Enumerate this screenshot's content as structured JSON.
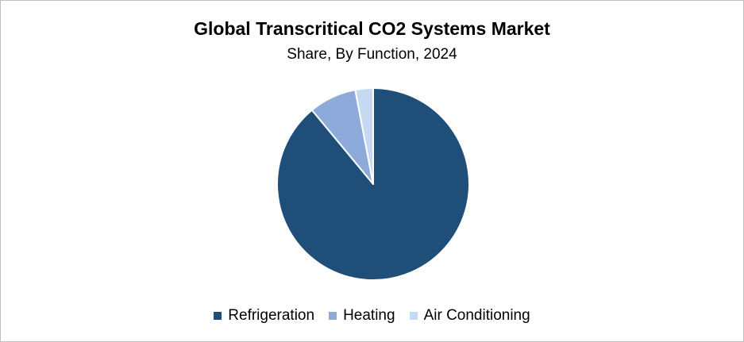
{
  "chart_data": {
    "type": "pie",
    "title": "Global Transcritical CO2 Systems Market",
    "subtitle": "Share, By Function, 2024",
    "categories": [
      "Refrigeration",
      "Heating",
      "Air Conditioning"
    ],
    "values": [
      89,
      8,
      3
    ],
    "colors": [
      "#1f4e79",
      "#8eaadb",
      "#c5d9f1"
    ],
    "legend_position": "bottom"
  }
}
